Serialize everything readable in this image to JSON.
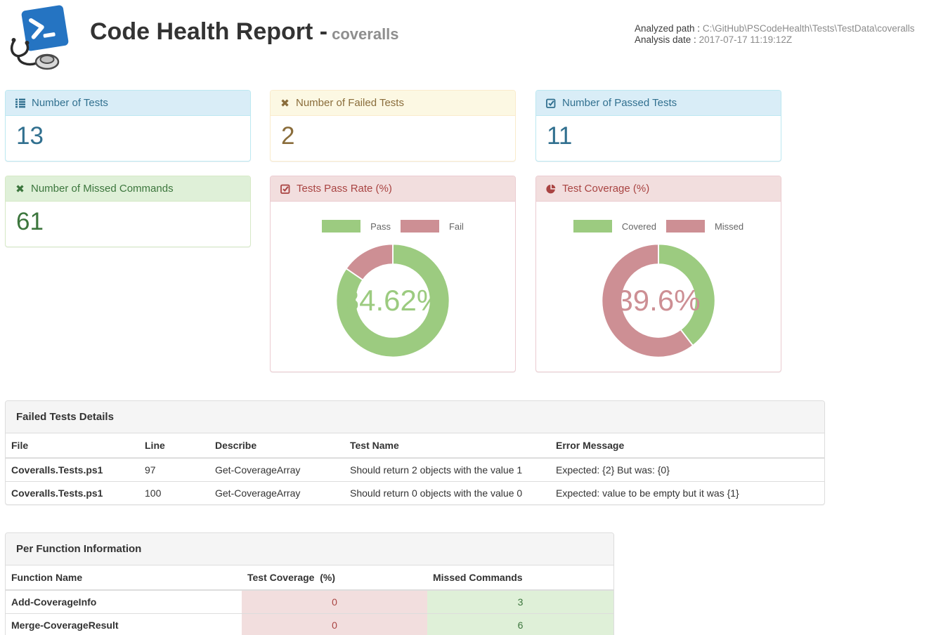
{
  "header": {
    "title": "Code Health Report -",
    "subtitle": "coveralls",
    "analyzed_path_label": "Analyzed path :",
    "analyzed_path": "C:\\GitHub\\PSCodeHealth\\Tests\\TestData\\coveralls",
    "analysis_date_label": "Analysis date :",
    "analysis_date": "2017-07-17 11:19:12Z"
  },
  "cards": {
    "tests": {
      "label": "Number of Tests",
      "value": "13"
    },
    "failed": {
      "label": "Number of Failed Tests",
      "value": "2"
    },
    "passed": {
      "label": "Number of Passed Tests",
      "value": "11"
    },
    "missed": {
      "label": "Number of Missed Commands",
      "value": "61"
    },
    "pass_rate": {
      "label": "Tests Pass Rate (%)"
    },
    "coverage": {
      "label": "Test Coverage (%)"
    }
  },
  "chart_data": [
    {
      "type": "pie",
      "title": "Tests Pass Rate (%)",
      "labels": [
        "Pass",
        "Fail"
      ],
      "values": [
        84.62,
        15.38
      ],
      "colors": [
        "#9ccb80",
        "#cd8f94"
      ],
      "center_label": "84.62%",
      "center_label_color": "#9ccb80",
      "donut_hole_ratio": 0.64,
      "legend_position": "top",
      "start_angle_deg": 0,
      "direction": "clockwise"
    },
    {
      "type": "pie",
      "title": "Test Coverage (%)",
      "labels": [
        "Covered",
        "Missed"
      ],
      "values": [
        39.6,
        60.4
      ],
      "colors": [
        "#9ccb80",
        "#cd8f94"
      ],
      "center_label": "39.6%",
      "center_label_color": "#cd8f94",
      "donut_hole_ratio": 0.64,
      "legend_position": "top",
      "start_angle_deg": 0,
      "direction": "clockwise"
    }
  ],
  "failed_tests": {
    "title": "Failed Tests Details",
    "columns": [
      "File",
      "Line",
      "Describe",
      "Test Name",
      "Error Message"
    ],
    "rows": [
      [
        "Coveralls.Tests.ps1",
        "97",
        "Get-CoverageArray",
        "Should return 2 objects with the value 1",
        "Expected: {2} But was: {0}"
      ],
      [
        "Coveralls.Tests.ps1",
        "100",
        "Get-CoverageArray",
        "Should return 0 objects with the value 0",
        "Expected: value to be empty but it was {1}"
      ]
    ]
  },
  "per_function": {
    "title": "Per Function Information",
    "columns": [
      "Function Name",
      "Test Coverage  (%)",
      "Missed Commands"
    ],
    "rows": [
      {
        "function": "Add-CoverageInfo",
        "coverage": "0",
        "missed": "3"
      },
      {
        "function": "Merge-CoverageResult",
        "coverage": "0",
        "missed": "6"
      },
      {
        "function": "",
        "coverage": "",
        "missed": ""
      }
    ]
  },
  "theme": {
    "info": {
      "bg": "#d9edf7",
      "border": "#bce8f1",
      "text": "#31708f"
    },
    "warning": {
      "bg": "#fcf8e3",
      "border": "#faebcc",
      "text": "#8a6d3b"
    },
    "success": {
      "bg": "#dff0d8",
      "border": "#d6e9c6",
      "text": "#3c763d"
    },
    "danger": {
      "bg": "#f2dede",
      "border": "#ebccd1",
      "text": "#a94442"
    },
    "chart_green": "#9ccb80",
    "chart_red": "#cd8f94",
    "powershell_blue": "#2574c2"
  }
}
